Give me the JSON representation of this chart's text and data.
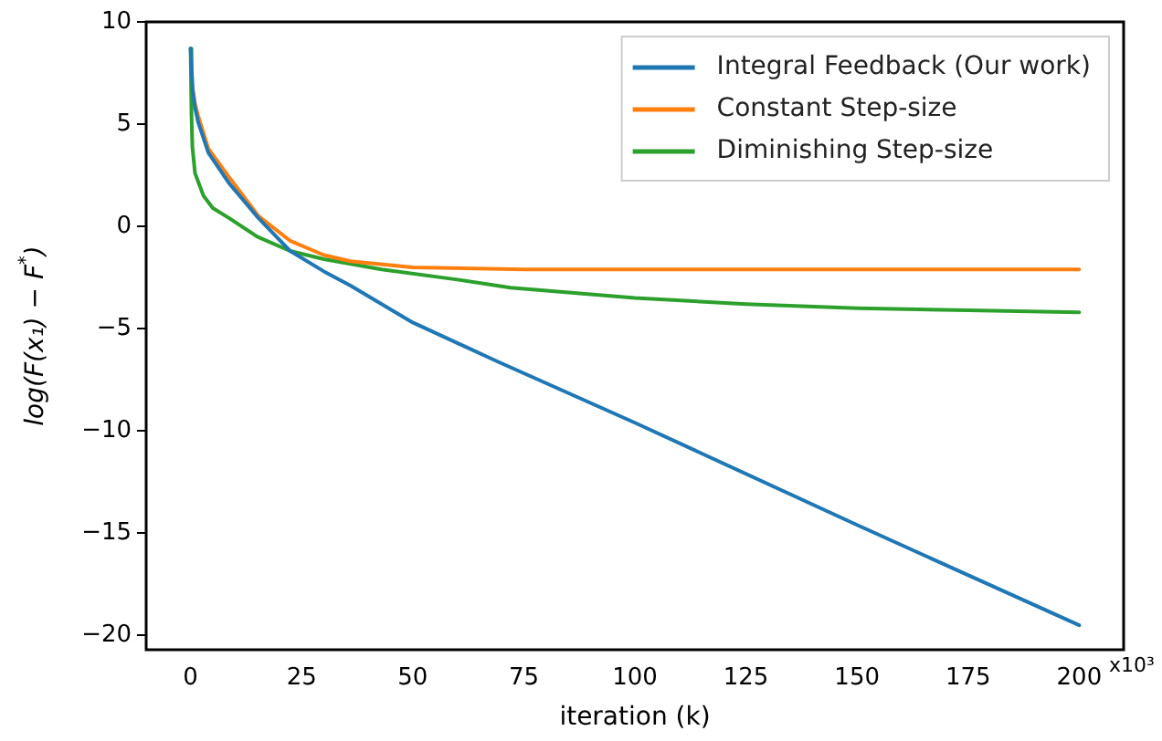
{
  "chart_data": {
    "type": "line",
    "xlabel": "iteration (k)",
    "ylabel": "log(F(x₁) − F$^{*}$)",
    "xlim": [
      -10,
      210
    ],
    "ylim": [
      -20.7,
      10
    ],
    "xticks": [
      0,
      25,
      50,
      75,
      100,
      125,
      150,
      175,
      200
    ],
    "yticks": [
      -20,
      -15,
      -10,
      -5,
      0,
      5,
      10
    ],
    "grid": false,
    "legend": "top right",
    "line_style": "solid",
    "marker": "none",
    "annotations": [
      "x10³"
    ],
    "series": [
      {
        "name": "Integral Feedback (Our work)",
        "color": "#1f77b4",
        "x": [
          0,
          0.5,
          1,
          1.7,
          4,
          8.7,
          15.3,
          22.4,
          30,
          36,
          50,
          69,
          100,
          150,
          200
        ],
        "values": [
          8.7,
          6.6,
          5.8,
          5.1,
          3.6,
          2.1,
          0.4,
          -1.2,
          -2.2,
          -2.9,
          -4.7,
          -6.6,
          -9.6,
          -14.6,
          -19.5
        ]
      },
      {
        "name": "Constant Step-size",
        "color": "#ff7f0e",
        "x": [
          0.5,
          1,
          1.7,
          4,
          8.7,
          15.3,
          22.4,
          30,
          36,
          50,
          75,
          100,
          150,
          200
        ],
        "values": [
          6.7,
          6.0,
          5.4,
          3.8,
          2.4,
          0.5,
          -0.7,
          -1.4,
          -1.7,
          -2.0,
          -2.1,
          -2.1,
          -2.1,
          -2.1
        ]
      },
      {
        "name": "Diminishing Step-size",
        "color": "#2ca02c",
        "x": [
          0,
          0.2,
          0.4,
          1,
          2.9,
          5,
          8.7,
          15,
          22.4,
          30,
          43,
          60,
          72,
          100,
          125,
          150,
          175,
          200
        ],
        "values": [
          8.7,
          5.5,
          3.9,
          2.6,
          1.5,
          0.9,
          0.4,
          -0.5,
          -1.2,
          -1.6,
          -2.1,
          -2.6,
          -3.0,
          -3.5,
          -3.8,
          -4.0,
          -4.1,
          -4.2
        ]
      }
    ]
  }
}
